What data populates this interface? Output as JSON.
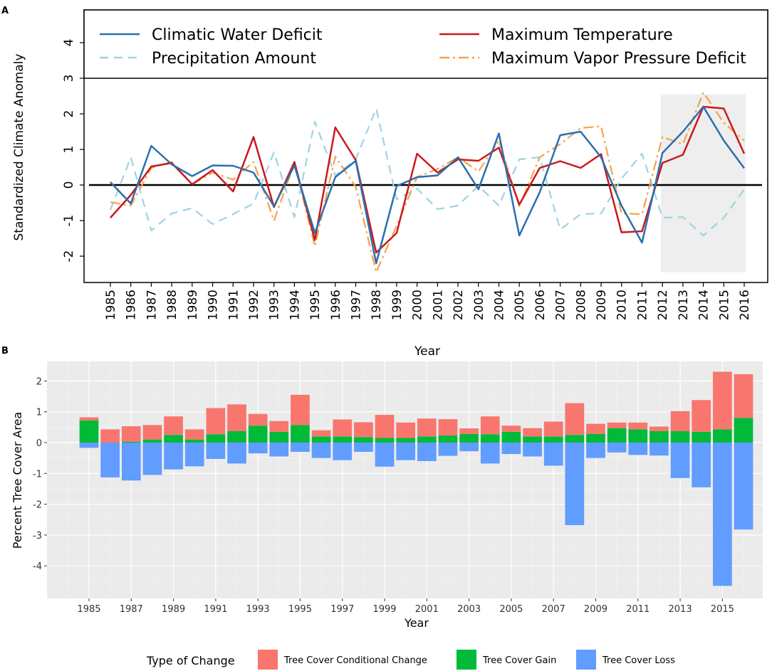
{
  "chart_data": [
    {
      "panel": "A",
      "type": "line",
      "xlabel": "Year",
      "ylabel": "Standardized Climate Anomaly",
      "ylim": [
        -2.7,
        4.9
      ],
      "yticks": [
        -2,
        -1,
        0,
        1,
        2,
        3,
        4
      ],
      "x": [
        1985,
        1986,
        1987,
        1988,
        1989,
        1990,
        1991,
        1992,
        1993,
        1994,
        1995,
        1996,
        1997,
        1998,
        1999,
        2000,
        2001,
        2002,
        2003,
        2004,
        2005,
        2006,
        2007,
        2008,
        2009,
        2010,
        2011,
        2012,
        2013,
        2014,
        2015,
        2016
      ],
      "highlight_years": [
        2012,
        2016
      ],
      "reference_line": 0,
      "series": [
        {
          "name": "Climatic Water Deficit",
          "color": "#2b6fae",
          "style": "solid",
          "values": [
            0.08,
            -0.52,
            1.1,
            0.58,
            0.25,
            0.55,
            0.54,
            0.35,
            -0.6,
            0.55,
            -1.35,
            0.22,
            0.68,
            -2.2,
            -0.03,
            0.22,
            0.27,
            0.78,
            -0.12,
            1.45,
            -1.42,
            -0.2,
            1.4,
            1.5,
            0.78,
            -0.58,
            -1.62,
            0.9,
            1.5,
            2.2,
            1.25,
            0.47
          ]
        },
        {
          "name": "Precipitation Amount",
          "color": "#9fd3e3",
          "style": "dash",
          "values": [
            -0.7,
            0.78,
            -1.28,
            -0.8,
            -0.65,
            -1.1,
            -0.82,
            -0.52,
            0.92,
            -0.9,
            1.78,
            0.27,
            0.72,
            2.15,
            -0.4,
            -0.1,
            -0.68,
            -0.58,
            -0.02,
            -0.58,
            0.72,
            0.78,
            -1.25,
            -0.82,
            -0.8,
            0.18,
            0.88,
            -0.92,
            -0.9,
            -1.42,
            -0.92,
            -0.12
          ]
        },
        {
          "name": "Maximum Temperature",
          "color": "#c9191e",
          "style": "solid",
          "values": [
            -0.92,
            -0.28,
            0.52,
            0.62,
            0.02,
            0.42,
            -0.18,
            1.35,
            -0.62,
            0.65,
            -1.55,
            1.62,
            0.7,
            -1.9,
            -1.35,
            0.88,
            0.35,
            0.72,
            0.68,
            1.05,
            -0.55,
            0.48,
            0.67,
            0.48,
            0.87,
            -1.33,
            -1.3,
            0.62,
            0.85,
            2.2,
            2.15,
            0.88
          ]
        },
        {
          "name": "Maximum Vapor Pressure Deficit",
          "color": "#f4a34a",
          "style": "dashdot",
          "values": [
            -0.48,
            -0.58,
            0.48,
            0.65,
            0.02,
            0.35,
            0.15,
            0.65,
            -1.0,
            0.62,
            -1.72,
            0.8,
            -0.05,
            -2.45,
            -1.15,
            0.22,
            0.45,
            0.78,
            0.38,
            1.25,
            -0.6,
            0.78,
            1.15,
            1.6,
            1.65,
            -0.8,
            -0.82,
            1.35,
            1.15,
            2.6,
            1.75,
            1.25
          ]
        }
      ],
      "legend": {
        "placement": "top"
      }
    },
    {
      "panel": "B",
      "type": "bar",
      "stacked": true,
      "xlabel": "Year",
      "ylabel": "Percent Tree Cover Area",
      "ylim": [
        -5.0,
        2.7
      ],
      "yticks": [
        -4,
        -3,
        -2,
        -1,
        0,
        1,
        2
      ],
      "xtick_labels": [
        "1985",
        "1987",
        "1989",
        "1991",
        "1993",
        "1995",
        "1997",
        "1999",
        "2001",
        "2003",
        "2005",
        "2007",
        "2009",
        "2011",
        "2013",
        "2015"
      ],
      "categories": [
        1985,
        1986,
        1987,
        1988,
        1989,
        1990,
        1991,
        1992,
        1993,
        1994,
        1995,
        1996,
        1997,
        1998,
        1999,
        2000,
        2001,
        2002,
        2003,
        2004,
        2005,
        2006,
        2007,
        2008,
        2009,
        2010,
        2011,
        2012,
        2013,
        2014,
        2015,
        2016
      ],
      "legend_title": "Type of Change",
      "series": [
        {
          "name": "Tree Cover Conditional Change",
          "color": "#f8766d",
          "values": [
            0.1,
            0.43,
            0.5,
            0.47,
            0.6,
            0.33,
            0.85,
            0.87,
            0.38,
            0.35,
            0.98,
            0.2,
            0.55,
            0.48,
            0.75,
            0.5,
            0.58,
            0.53,
            0.18,
            0.58,
            0.2,
            0.27,
            0.48,
            1.03,
            0.33,
            0.18,
            0.22,
            0.15,
            0.65,
            1.03,
            1.87,
            1.42
          ]
        },
        {
          "name": "Tree Cover Gain",
          "color": "#00ba38",
          "values": [
            0.72,
            0.0,
            0.03,
            0.1,
            0.25,
            0.1,
            0.27,
            0.37,
            0.55,
            0.35,
            0.57,
            0.2,
            0.2,
            0.18,
            0.15,
            0.15,
            0.2,
            0.23,
            0.28,
            0.27,
            0.35,
            0.2,
            0.2,
            0.25,
            0.28,
            0.47,
            0.43,
            0.37,
            0.37,
            0.35,
            0.43,
            0.8
          ]
        },
        {
          "name": "Tree Cover Loss",
          "color": "#619cff",
          "values": [
            -0.17,
            -1.13,
            -1.23,
            -1.05,
            -0.87,
            -0.77,
            -0.53,
            -0.68,
            -0.35,
            -0.45,
            -0.3,
            -0.5,
            -0.57,
            -0.3,
            -0.78,
            -0.57,
            -0.6,
            -0.43,
            -0.28,
            -0.68,
            -0.37,
            -0.45,
            -0.75,
            -2.68,
            -0.5,
            -0.32,
            -0.4,
            -0.42,
            -1.15,
            -1.45,
            -4.65,
            -2.82
          ]
        }
      ],
      "legend": {
        "placement": "bottom"
      }
    }
  ],
  "panel_labels": {
    "a": "A",
    "b": "B"
  }
}
